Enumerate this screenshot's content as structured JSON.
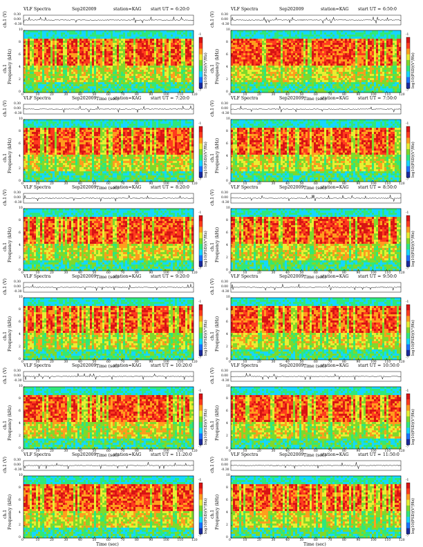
{
  "chart_data": {
    "type": "heatmap",
    "common": {
      "title": "VLF Spectra",
      "date": "Sep202009",
      "station": "station=KAG",
      "start_label": "start UT =",
      "xlabel": "Time (sec)",
      "ylabel_top": "ch.1 (V)",
      "ylabel_spec_a": "ch.1",
      "ylabel_spec_b": "Frequency (kHz)",
      "colorbar_label": "log10(PSD)(V²/Hz)",
      "x_ticks": [
        "0",
        "10",
        "20",
        "30",
        "40",
        "50",
        "60",
        "70",
        "80",
        "90",
        "100",
        "110",
        "120"
      ],
      "xlim": [
        0,
        120
      ],
      "y_ticks": [
        "0",
        "2",
        "4",
        "6",
        "8",
        "10"
      ],
      "ylim": [
        0,
        10
      ],
      "top_y_ticks": [
        "0.30",
        "0.00",
        "-0.30"
      ],
      "top_ylim": [
        -0.3,
        0.3
      ],
      "colorbar_ticks": [
        "-1",
        "-7"
      ],
      "colormap": [
        "#1b2a9c",
        "#1a72ff",
        "#15d7ff",
        "#2fe87a",
        "#7fd92b",
        "#e9ee32",
        "#ff9d1d",
        "#ff3b1e",
        "#d81414"
      ]
    },
    "panels": [
      {
        "start_ut": "6:20:0"
      },
      {
        "start_ut": "6:50:0"
      },
      {
        "start_ut": "7:20:0"
      },
      {
        "start_ut": "7:50:0"
      },
      {
        "start_ut": "8:20:0"
      },
      {
        "start_ut": "8:50:0"
      },
      {
        "start_ut": "9:20:0"
      },
      {
        "start_ut": "9:50:0"
      },
      {
        "start_ut": "10:20:0"
      },
      {
        "start_ut": "10:50:0"
      },
      {
        "start_ut": "11:20:0"
      },
      {
        "start_ut": "11:50:0"
      }
    ]
  }
}
